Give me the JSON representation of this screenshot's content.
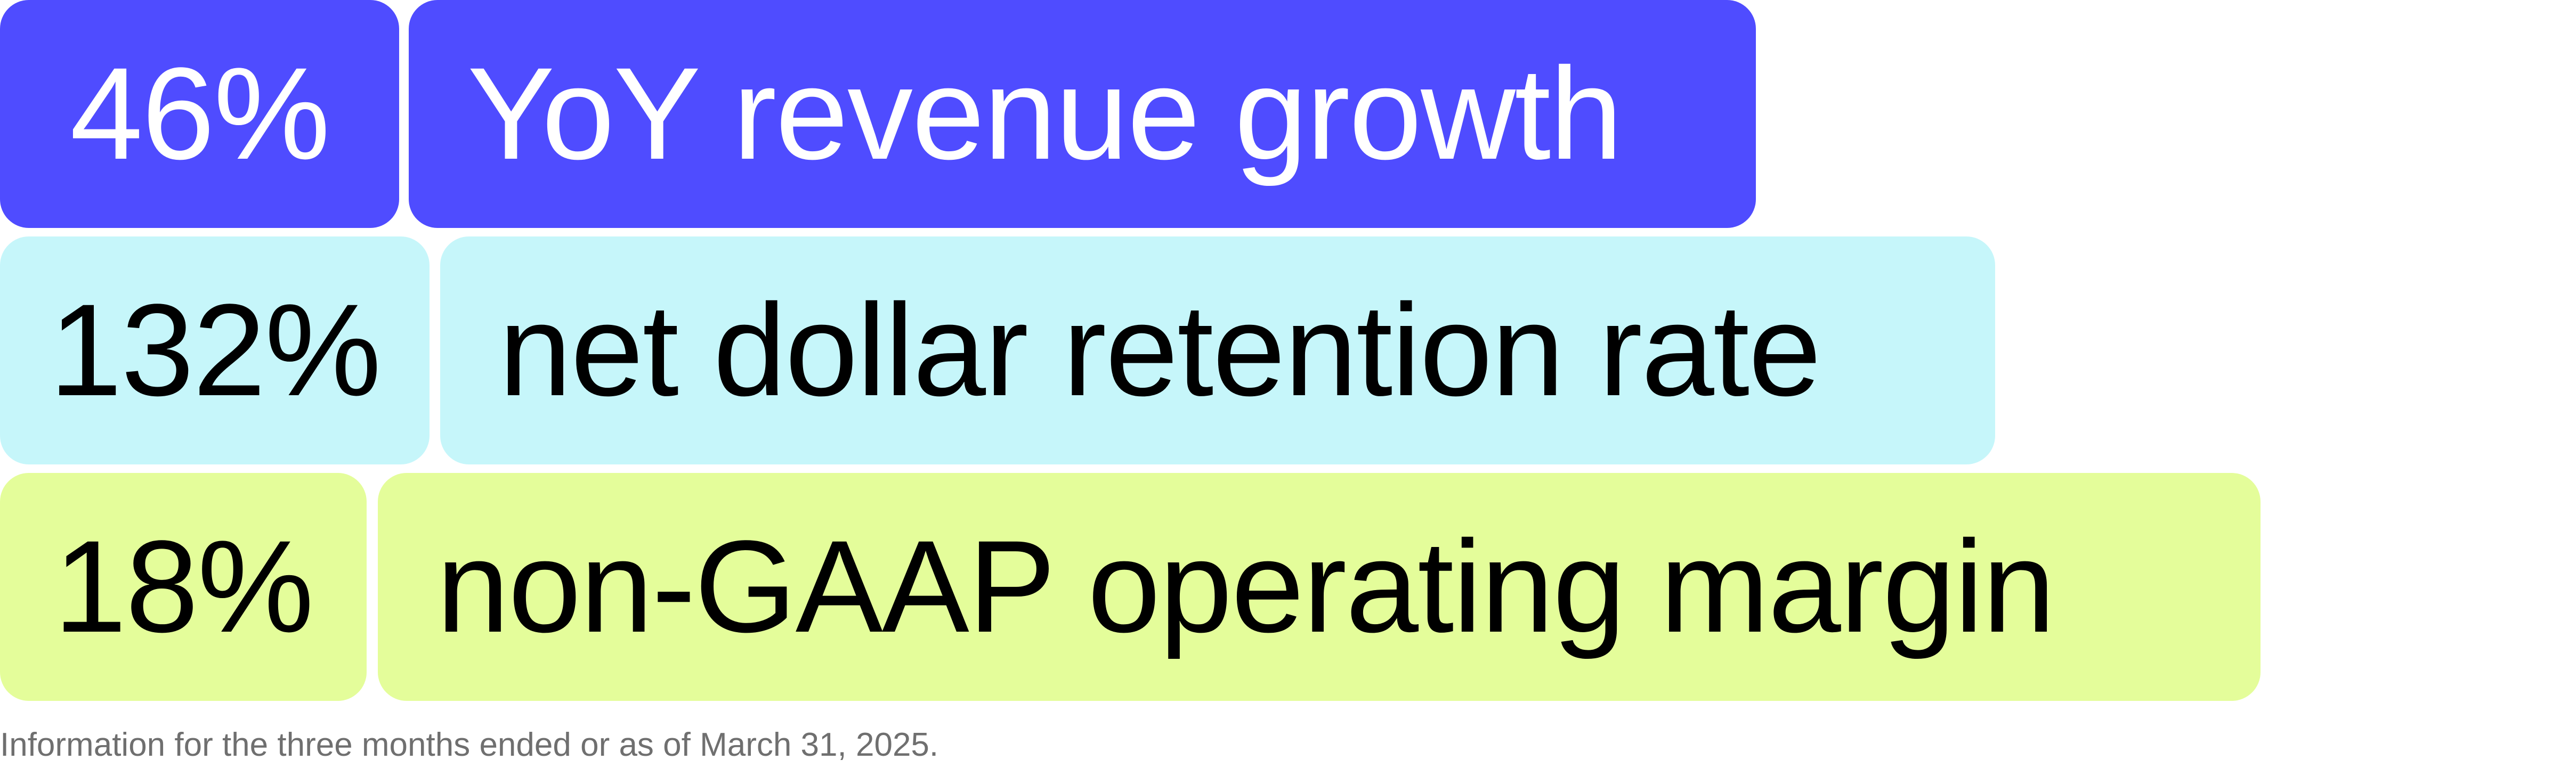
{
  "metrics": [
    {
      "value": "46%",
      "label": "YoY revenue growth",
      "background": "#4f4cff",
      "text_color": "#ffffff"
    },
    {
      "value": "132%",
      "label": "net dollar retention rate",
      "background": "#c6f6fa",
      "text_color": "#000000"
    },
    {
      "value": "18%",
      "label": "non-GAAP operating margin",
      "background": "#e4fd9a",
      "text_color": "#000000"
    }
  ],
  "footnote": "Information for the three months ended or as of March 31, 2025."
}
